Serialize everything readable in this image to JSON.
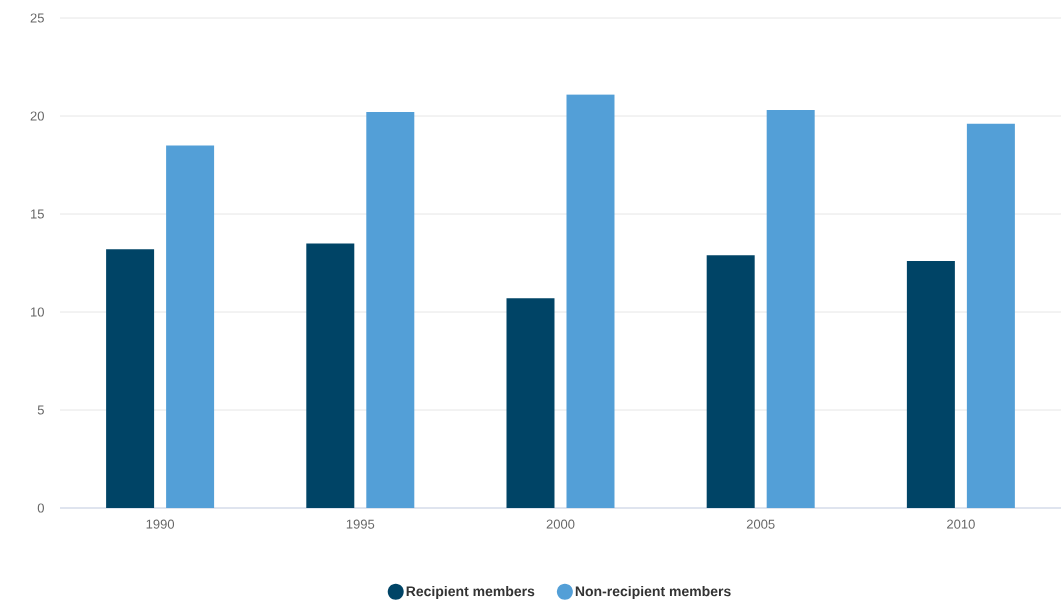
{
  "chart_data": {
    "type": "bar",
    "categories": [
      "1990",
      "1995",
      "2000",
      "2005",
      "2010"
    ],
    "series": [
      {
        "name": "Recipient members",
        "color": "#004466",
        "values": [
          13.2,
          13.5,
          10.7,
          12.9,
          12.6
        ]
      },
      {
        "name": "Non-recipient members",
        "color": "#539fd7",
        "values": [
          18.5,
          20.2,
          21.1,
          20.3,
          19.6
        ]
      }
    ],
    "ylim": [
      0,
      25
    ],
    "yticks": [
      0,
      5,
      10,
      15,
      20,
      25
    ],
    "grid": "y",
    "legend": "bottom"
  }
}
